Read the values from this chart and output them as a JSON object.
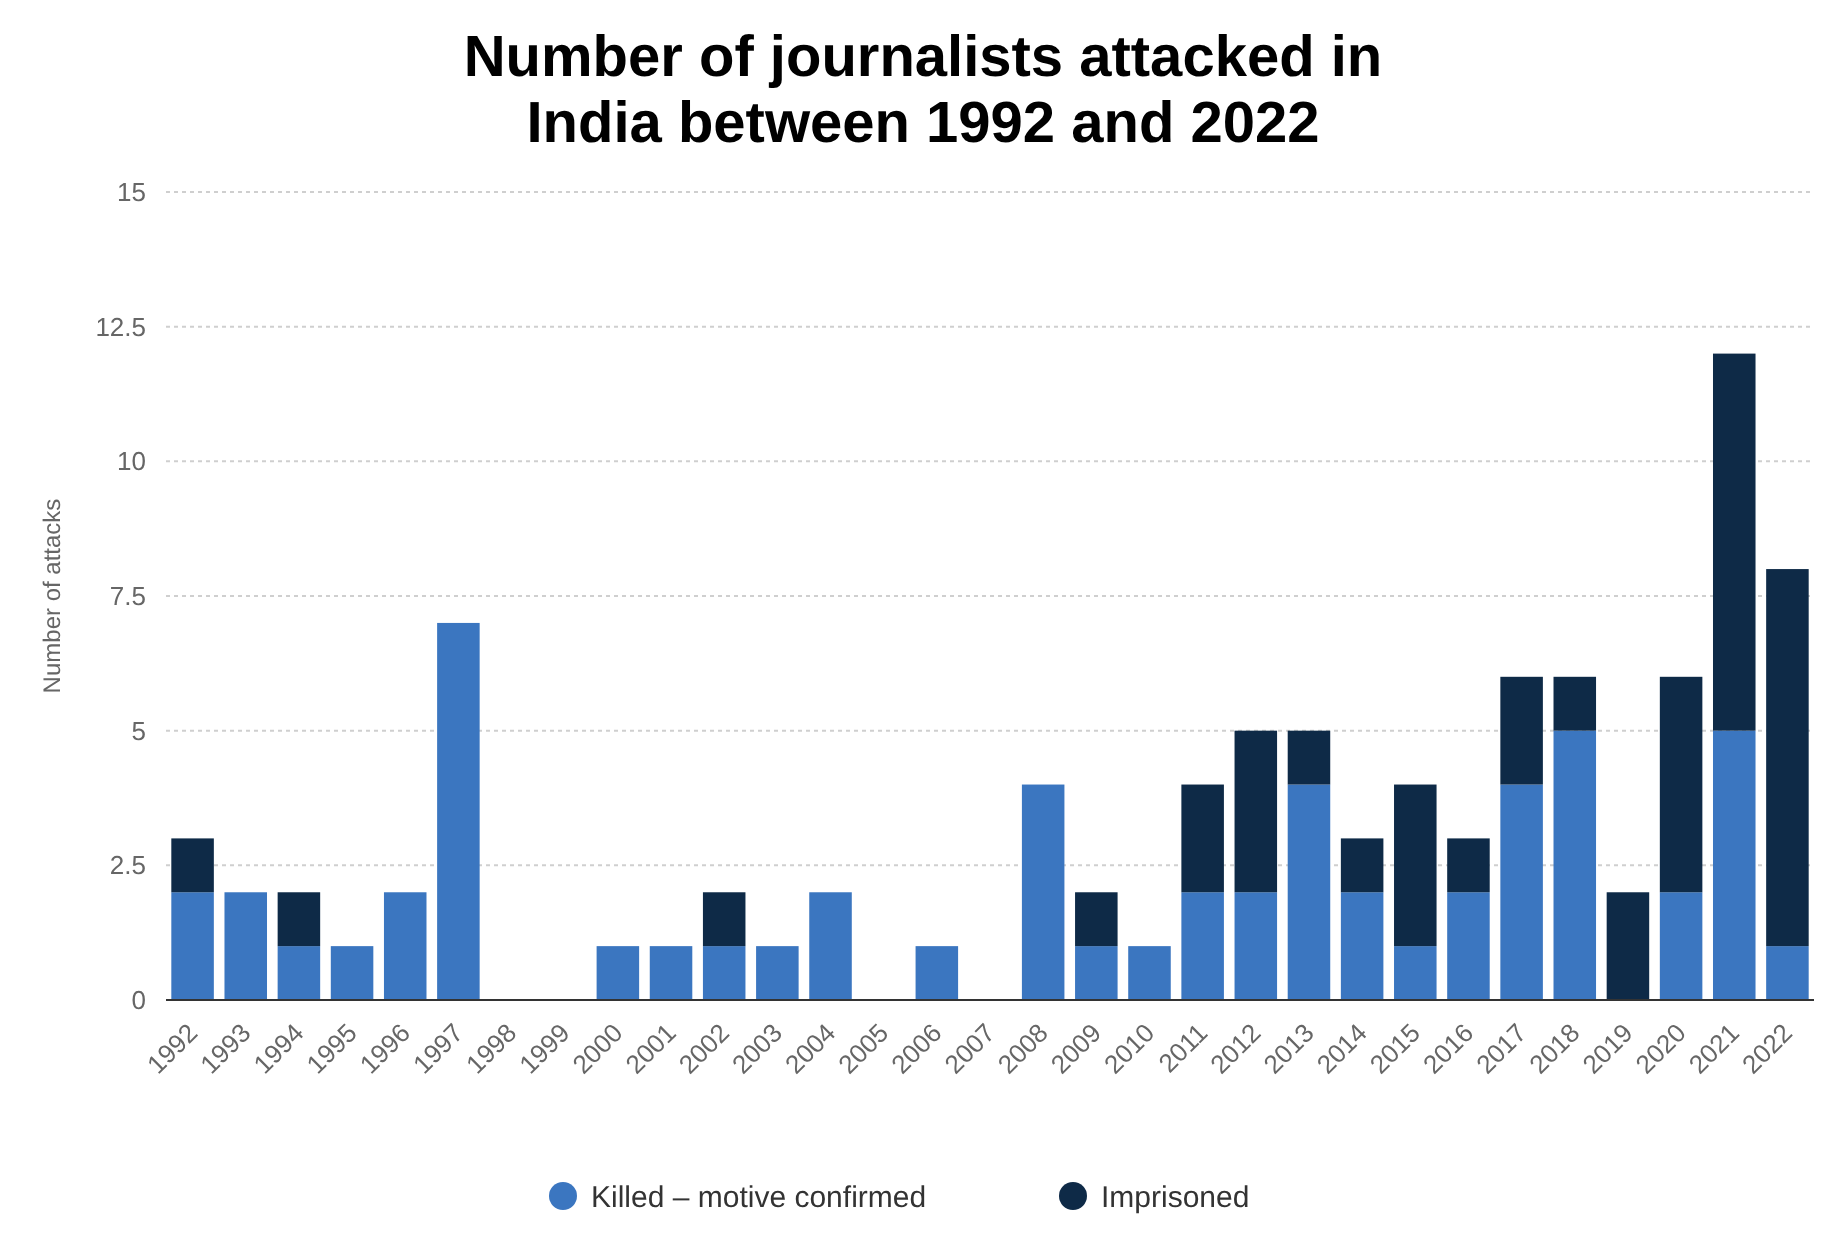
{
  "chart_data": {
    "type": "bar",
    "title": "Number of journalists attacked in India between 1992 and 2022",
    "ylabel": "Number of attacks",
    "stacked": true,
    "grid": "y",
    "legend": "bottom",
    "categories": [
      "1992",
      "1993",
      "1994",
      "1995",
      "1996",
      "1997",
      "1998",
      "1999",
      "2000",
      "2001",
      "2002",
      "2003",
      "2004",
      "2005",
      "2006",
      "2007",
      "2008",
      "2009",
      "2010",
      "2011",
      "2012",
      "2013",
      "2014",
      "2015",
      "2016",
      "2017",
      "2018",
      "2019",
      "2020",
      "2021",
      "2022"
    ],
    "series": [
      {
        "name": "Killed – motive confirmed",
        "color": "#3b76c0",
        "values": [
          2,
          2,
          1,
          1,
          2,
          7,
          0,
          0,
          1,
          1,
          1,
          1,
          2,
          0,
          1,
          0,
          4,
          1,
          1,
          2,
          2,
          4,
          2,
          1,
          2,
          4,
          5,
          0,
          2,
          5,
          1
        ]
      },
      {
        "name": "Imprisoned",
        "color": "#0e2a47",
        "values": [
          1,
          0,
          1,
          0,
          0,
          0,
          0,
          0,
          0,
          0,
          1,
          0,
          0,
          0,
          0,
          0,
          0,
          1,
          0,
          2,
          3,
          1,
          1,
          3,
          1,
          2,
          1,
          2,
          4,
          7,
          7
        ]
      }
    ],
    "ylim": [
      0,
      15
    ],
    "yticks": [
      0,
      2.5,
      5,
      7.5,
      10,
      12.5,
      15
    ]
  }
}
